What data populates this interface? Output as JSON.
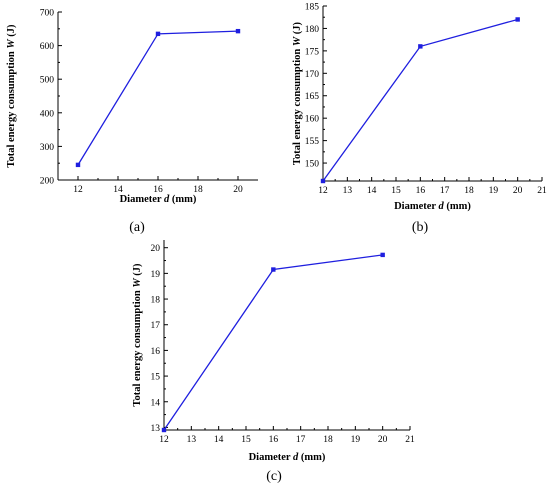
{
  "chart_data": [
    {
      "type": "line",
      "panel_label": "(a)",
      "xlabel": "Diameter d (mm)",
      "ylabel": "Total energy consumption W (J)",
      "xlim": [
        11,
        21
      ],
      "ylim": [
        200,
        700
      ],
      "xticks": [
        12,
        14,
        16,
        18,
        20
      ],
      "yticks": [
        200,
        300,
        400,
        500,
        600,
        700
      ],
      "x": [
        12,
        16,
        20
      ],
      "series": [
        {
          "values": [
            245,
            635,
            643
          ]
        }
      ],
      "color": "#1f1fdf"
    },
    {
      "type": "line",
      "panel_label": "(b)",
      "xlabel": "Diameter d (mm)",
      "ylabel": "Total energy consumption W (J)",
      "xlim": [
        12,
        21
      ],
      "ylim": [
        146,
        185
      ],
      "xticks": [
        12,
        13,
        14,
        15,
        16,
        17,
        18,
        19,
        20,
        21
      ],
      "yticks": [
        150,
        155,
        160,
        165,
        170,
        175,
        180,
        185
      ],
      "x": [
        12,
        16,
        20
      ],
      "series": [
        {
          "values": [
            146,
            176,
            182
          ]
        }
      ],
      "color": "#1f1fdf"
    },
    {
      "type": "line",
      "panel_label": "(c)",
      "xlabel": "Diameter d (mm)",
      "ylabel": "Total energy consumption W (J)",
      "xlim": [
        12,
        21
      ],
      "ylim": [
        12.9,
        20.3
      ],
      "xticks": [
        12,
        13,
        14,
        15,
        16,
        17,
        18,
        19,
        20,
        21
      ],
      "yticks": [
        13,
        14,
        15,
        16,
        17,
        18,
        19,
        20
      ],
      "x": [
        12,
        16,
        20
      ],
      "series": [
        {
          "values": [
            12.9,
            19.15,
            19.72
          ]
        }
      ],
      "color": "#1f1fdf"
    }
  ]
}
